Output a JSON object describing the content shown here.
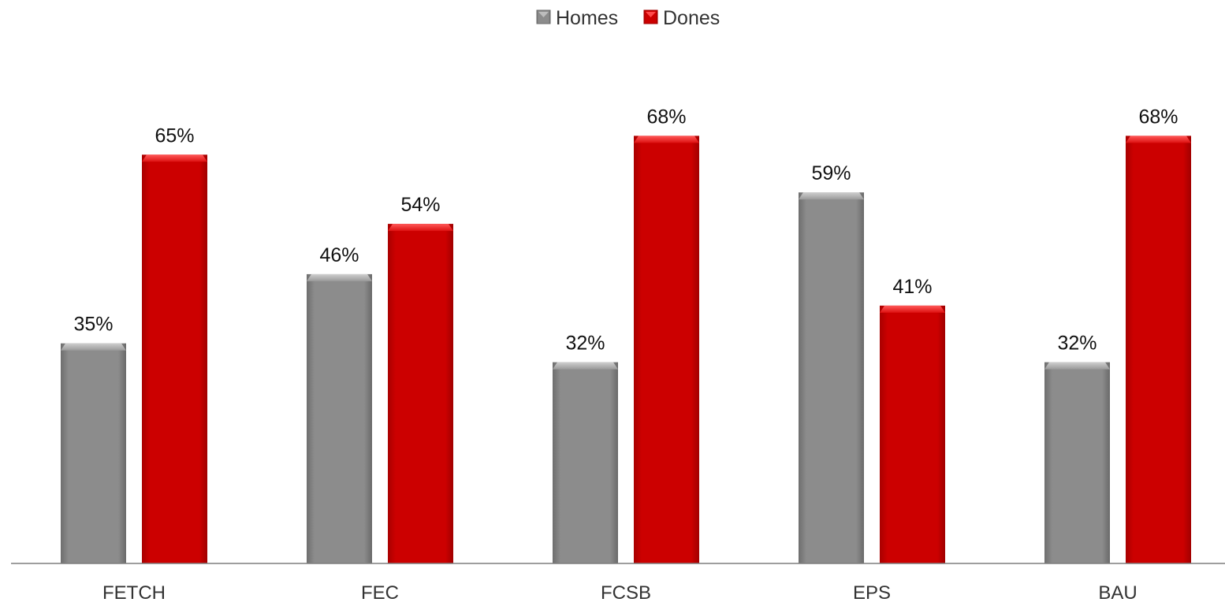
{
  "chart_data": {
    "type": "bar",
    "categories": [
      "FETCH",
      "FEC",
      "FCSB",
      "EPS",
      "BAU"
    ],
    "series": [
      {
        "name": "Homes",
        "values": [
          35,
          46,
          32,
          59,
          32
        ],
        "labels": [
          "35%",
          "46%",
          "32%",
          "59%",
          "32%"
        ],
        "color": "#8a8a8a"
      },
      {
        "name": "Dones",
        "values": [
          65,
          54,
          68,
          41,
          68
        ],
        "labels": [
          "65%",
          "54%",
          "68%",
          "41%",
          "68%"
        ],
        "color": "#cc0000"
      }
    ],
    "ylim": [
      0,
      100
    ],
    "grid": false,
    "legend_position": "top-center",
    "title": "",
    "xlabel": "",
    "ylabel": ""
  }
}
